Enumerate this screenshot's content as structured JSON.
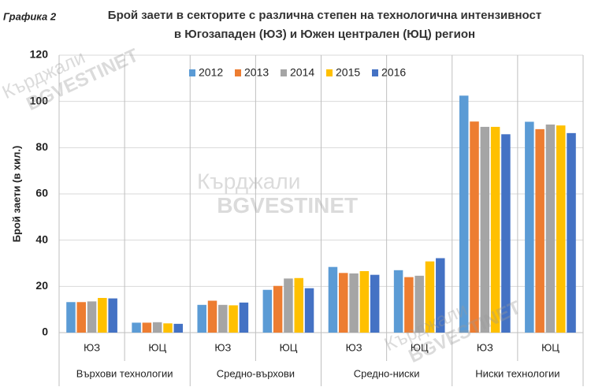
{
  "chart_data": {
    "type": "bar",
    "label": "Графика 2",
    "title": [
      "Брой заети в секторите с различна степен на технологична интензивност",
      "в Югозападен (ЮЗ) и Южен централен (ЮЦ) регион"
    ],
    "ylabel": "Брой заети (в хил.)",
    "watermark": [
      "Кърджали",
      "BGVESTINET"
    ],
    "groups": [
      {
        "name": "Върхови технологии",
        "categories": [
          "ЮЗ",
          "ЮЦ"
        ]
      },
      {
        "name": "Средно-върхови",
        "categories": [
          "ЮЗ",
          "ЮЦ"
        ]
      },
      {
        "name": "Средно-ниски",
        "categories": [
          "ЮЗ",
          "ЮЦ"
        ]
      },
      {
        "name": "Ниски технологии",
        "categories": [
          "ЮЗ",
          "ЮЦ"
        ]
      }
    ],
    "series": [
      {
        "name": "2012",
        "color": "#5b9bd5",
        "values": [
          13.2,
          4.3,
          12,
          18.5,
          28.4,
          27,
          102.5,
          91.2
        ]
      },
      {
        "name": "2013",
        "color": "#ed7d31",
        "values": [
          13.2,
          4.3,
          13.8,
          20.2,
          25.8,
          24,
          91.3,
          88
        ]
      },
      {
        "name": "2014",
        "color": "#a5a5a5",
        "values": [
          13.5,
          4.5,
          12,
          23.4,
          25.6,
          24.6,
          89,
          90
        ]
      },
      {
        "name": "2015",
        "color": "#ffc000",
        "values": [
          15,
          4,
          11.8,
          23.6,
          26.6,
          30.8,
          89,
          89.6
        ]
      },
      {
        "name": "2016",
        "color": "#4472c4",
        "values": [
          14.8,
          3.8,
          13,
          19.2,
          25,
          32.2,
          85.8,
          86.3
        ]
      }
    ],
    "ylim": [
      0,
      120
    ],
    "yticks": [
      0,
      20,
      40,
      60,
      80,
      100,
      120
    ],
    "grid": true
  }
}
